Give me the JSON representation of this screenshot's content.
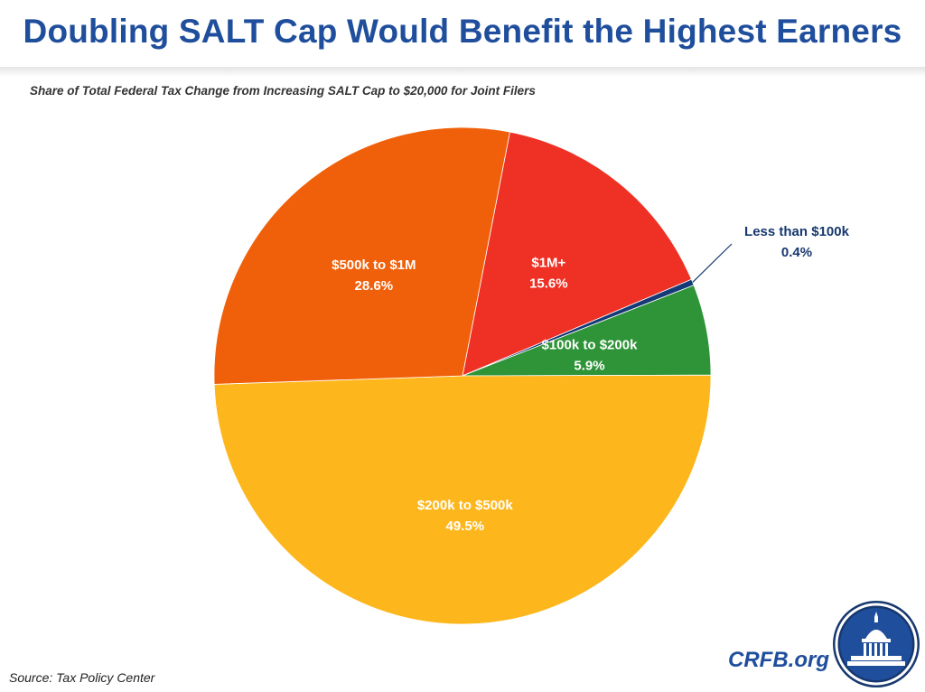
{
  "header": {
    "title": "Doubling SALT Cap Would Benefit the Highest Earners",
    "subtitle": "Share of Total Federal Tax Change from Increasing SALT Cap to $20,000 for Joint Filers"
  },
  "footer": {
    "source": "Source: Tax Policy Center",
    "site": "CRFB.org",
    "logo_icon": "capitol-dome-seal-icon"
  },
  "chart_data": {
    "type": "pie",
    "title": "Share of Total Federal Tax Change from Increasing SALT Cap to $20,000 for Joint Filers",
    "slices": [
      {
        "label": "$1M+",
        "value": 15.6,
        "value_label": "15.6%",
        "color": "#ee3124"
      },
      {
        "label": "Less than $100k",
        "value": 0.4,
        "value_label": "0.4%",
        "color": "#163a78"
      },
      {
        "label": "$100k to $200k",
        "value": 5.9,
        "value_label": "5.9%",
        "color": "#2e9437"
      },
      {
        "label": "$200k to $500k",
        "value": 49.5,
        "value_label": "49.5%",
        "color": "#fdb71c"
      },
      {
        "label": "$500k to $1M",
        "value": 28.6,
        "value_label": "28.6%",
        "color": "#f0600a"
      }
    ],
    "legend": "none"
  }
}
